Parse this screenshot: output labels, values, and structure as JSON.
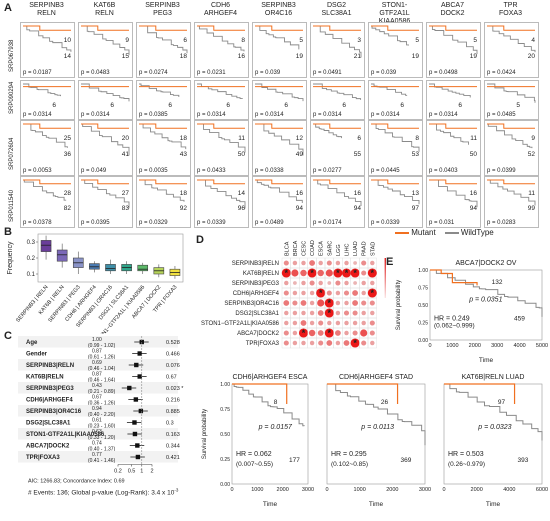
{
  "panel_labels": {
    "a": "A",
    "b": "B",
    "c": "C",
    "d": "D",
    "e": "E"
  },
  "legend": {
    "mutant": "Mutant",
    "wildtype": "WildType",
    "mutant_color": "#f07020",
    "wildtype_color": "#8a8a8a"
  },
  "panel_a": {
    "columns": [
      "SERPINB3\nRELN",
      "KAT6B\nRELN",
      "SERPINB3\nPEG3",
      "CDH6\nARHGEF4",
      "SERPINB3\nOR4C16",
      "DSG2\nSLC38A1",
      "STON1-GTF2A1L\nKIAA0586",
      "ABCA7\nDOCK2",
      "TPR\nFOXA3"
    ],
    "col_top": [
      "SERPINB3",
      "KAT6B",
      "SERPINB3",
      "CDH6",
      "SERPINB3",
      "DSG2",
      "STON1-GTF2A1L",
      "ABCA7",
      "TPR"
    ],
    "col_bot": [
      "RELN",
      "RELN",
      "PEG3",
      "ARHGEF4",
      "OR4C16",
      "SLC38A1",
      "KIAA0586",
      "DOCK2",
      "FOXA3"
    ],
    "rows": [
      "SRP067938",
      "SRP090294",
      "SRP072604",
      "SRP011540"
    ],
    "cells": [
      [
        {
          "m": "10",
          "w": "14",
          "p": "p = 0.0187"
        },
        {
          "m": "9",
          "w": "15",
          "p": "p = 0.0483"
        },
        {
          "m": "6",
          "w": "18",
          "p": "p = 0.0274"
        },
        {
          "m": "8",
          "w": "16",
          "p": "p = 0.0231"
        },
        {
          "m": "5",
          "w": "19",
          "p": "p = 0.039"
        },
        {
          "m": "3",
          "w": "21",
          "p": "p = 0.0491"
        },
        {
          "m": "5",
          "w": "19",
          "p": "p = 0.039"
        },
        {
          "m": "5",
          "w": "19",
          "p": "p = 0.0498"
        },
        {
          "m": "4",
          "w": "20",
          "p": "p = 0.0424"
        }
      ],
      [
        {
          "m": "",
          "w": "6",
          "p": "p = 0.0314"
        },
        {
          "m": "",
          "w": "6",
          "p": "p = 0.0314"
        },
        {
          "m": "",
          "w": "6",
          "p": "p = 0.0385"
        },
        {
          "m": "",
          "w": "6",
          "p": "p = 0.0314"
        },
        {
          "m": "",
          "w": "6",
          "p": "p = 0.0314"
        },
        {
          "m": "",
          "w": "6",
          "p": "p = 0.0314"
        },
        {
          "m": "",
          "w": "6",
          "p": "p = 0.0314"
        },
        {
          "m": "",
          "w": "6",
          "p": "p = 0.0314"
        },
        {
          "m": "",
          "w": "5",
          "p": "p = 0.0485"
        }
      ],
      [
        {
          "m": "25",
          "w": "36",
          "p": "p = 0.0053"
        },
        {
          "m": "20",
          "w": "41",
          "p": "p = 0.049"
        },
        {
          "m": "18",
          "w": "43",
          "p": "p = 0.0035"
        },
        {
          "m": "11",
          "w": "50",
          "p": "p = 0.0433"
        },
        {
          "m": "12",
          "w": "49",
          "p": "p = 0.0338"
        },
        {
          "m": "6",
          "w": "55",
          "p": "p = 0.0277"
        },
        {
          "m": "8",
          "w": "53",
          "p": "p = 0.0445"
        },
        {
          "m": "11",
          "w": "50",
          "p": "p = 0.0403"
        },
        {
          "m": "9",
          "w": "52",
          "p": "p = 0.0399"
        }
      ],
      [
        {
          "m": "28",
          "w": "82",
          "p": "p = 0.0378"
        },
        {
          "m": "27",
          "w": "83",
          "p": "p = 0.0395"
        },
        {
          "m": "18",
          "w": "92",
          "p": "p = 0.0329"
        },
        {
          "m": "14",
          "w": "96",
          "p": "p = 0.0339"
        },
        {
          "m": "16",
          "w": "94",
          "p": "p = 0.0489"
        },
        {
          "m": "16",
          "w": "94",
          "p": "p = 0.0174"
        },
        {
          "m": "13",
          "w": "97",
          "p": "p = 0.0339"
        },
        {
          "m": "16",
          "w": "94",
          "p": "p = 0.031"
        },
        {
          "m": "11",
          "w": "99",
          "p": "p = 0.0283"
        }
      ]
    ]
  },
  "chart_data": [
    {
      "type": "boxplot",
      "ylabel": "Frequency",
      "categories": [
        "SERPINB3 | RELN",
        "KAT6B | RELN",
        "SERPINB3 | PEG3",
        "CDH6 | ARHGEF4",
        "SERPINB3 | OR4C16",
        "DSG2 | SLC38A1",
        "STON1−GTF2A1L | KIAA0586",
        "ABCA7 | DOCK2",
        "TPR | FOXA3"
      ],
      "yticks": [
        "0.1",
        "0.2",
        "0.3"
      ],
      "ylim": [
        0.05,
        0.35
      ],
      "colors": [
        "#6a3d9a",
        "#7b68b8",
        "#8a93c8",
        "#4a7ab0",
        "#3f8fa8",
        "#2fa58a",
        "#5cba6a",
        "#b6d45a",
        "#f0e040"
      ],
      "boxes": [
        {
          "q1": 0.24,
          "med": 0.28,
          "q3": 0.31,
          "lo": 0.19,
          "hi": 0.34
        },
        {
          "q1": 0.18,
          "med": 0.22,
          "q3": 0.25,
          "lo": 0.14,
          "hi": 0.29
        },
        {
          "q1": 0.14,
          "med": 0.17,
          "q3": 0.2,
          "lo": 0.1,
          "hi": 0.24
        },
        {
          "q1": 0.13,
          "med": 0.145,
          "q3": 0.165,
          "lo": 0.11,
          "hi": 0.18
        },
        {
          "q1": 0.12,
          "med": 0.135,
          "q3": 0.16,
          "lo": 0.1,
          "hi": 0.19
        },
        {
          "q1": 0.12,
          "med": 0.14,
          "q3": 0.16,
          "lo": 0.1,
          "hi": 0.18
        },
        {
          "q1": 0.12,
          "med": 0.13,
          "q3": 0.155,
          "lo": 0.1,
          "hi": 0.17
        },
        {
          "q1": 0.1,
          "med": 0.12,
          "q3": 0.14,
          "lo": 0.08,
          "hi": 0.16
        },
        {
          "q1": 0.09,
          "med": 0.11,
          "q3": 0.13,
          "lo": 0.07,
          "hi": 0.15
        }
      ]
    },
    {
      "type": "forest",
      "rows": [
        {
          "name": "Age",
          "hr": "1.00",
          "ci": "(0.99 - 1.02)",
          "p": "0.528",
          "est": 1.0
        },
        {
          "name": "Gender",
          "hr": "0.87",
          "ci": "(0.61 - 1.26)",
          "p": "0.466",
          "est": 0.87
        },
        {
          "name": "SERPINB3|RELN",
          "hr": "0.69",
          "ci": "(0.46 - 1.04)",
          "p": "0.076",
          "est": 0.69
        },
        {
          "name": "KAT6B|RELN",
          "hr": "0.87",
          "ci": "(0.46 - 1.64)",
          "p": "0.67",
          "est": 0.87
        },
        {
          "name": "SERPINB3|PEG3",
          "hr": "0.43",
          "ci": "(0.21 - 0.89)",
          "p": "0.023 *",
          "est": 0.43
        },
        {
          "name": "CDH6|ARHGEF4",
          "hr": "0.67",
          "ci": "(0.36 - 1.26)",
          "p": "0.216",
          "est": 0.67
        },
        {
          "name": "SERPINB3|OR4C16",
          "hr": "0.94",
          "ci": "(0.40 - 2.20)",
          "p": "0.885",
          "est": 0.94
        },
        {
          "name": "DSG2|SLC38A1",
          "hr": "0.61",
          "ci": "(0.23 - 1.60)",
          "p": "0.3",
          "est": 0.61
        },
        {
          "name": "STON1-GTF2A1L|KIAA0586",
          "hr": "0.63",
          "ci": "(0.33 - 1.20)",
          "p": "0.163",
          "est": 0.63
        },
        {
          "name": "ABCA7|DOCK2",
          "hr": "0.74",
          "ci": "(0.40 - 1.37)",
          "p": "0.344",
          "est": 0.74
        },
        {
          "name": "TPR|FOXA3",
          "hr": "0.77",
          "ci": "(0.41 - 1.46)",
          "p": "0.421",
          "est": 0.77
        }
      ],
      "footer1": "AIC: 1266.83; Concordance Index: 0.69",
      "footer2": "# Events: 136; Global p-value (Log-Rank): 3.4 x 10",
      "footer2_exp": "-3",
      "xticks": [
        "0.2",
        "0.5",
        "1",
        "2"
      ]
    },
    {
      "type": "heatmap",
      "columns": [
        "BLCA",
        "BRCA",
        "CESC",
        "COAD",
        "ESCA",
        "SARC",
        "LGG",
        "LIHC",
        "LUAD",
        "PAAD",
        "STAD"
      ],
      "rows": [
        "SERPINB3|RELN",
        "KAT6B|RELN",
        "SERPINB3|PEG3",
        "CDH6|ARHGEF4",
        "SERPINB3|OR4C16",
        "DSG2|SLC38A1",
        "STON1−GTF2A1L|KIAA0586",
        "ABCA7|DOCK2",
        "TPR|FOXA3"
      ],
      "scale_label": "1 − p value",
      "scale_ticks": [
        "0.2",
        "0.4",
        "0.6",
        "0.8",
        "1"
      ],
      "values": [
        [
          0.4,
          0.3,
          0.3,
          0.5,
          0.3,
          0.4,
          0.3,
          0.3,
          0.2,
          0.4,
          0.3
        ],
        [
          0.98,
          0.7,
          0.6,
          0.98,
          0.6,
          0.7,
          0.98,
          0.98,
          0.98,
          0.4,
          0.98
        ],
        [
          0.3,
          0.2,
          0.3,
          0.4,
          0.3,
          0.2,
          0.4,
          0.3,
          0.2,
          0.3,
          0.3
        ],
        [
          0.4,
          0.3,
          0.3,
          0.3,
          0.98,
          0.4,
          0.3,
          0.4,
          0.5,
          0.3,
          0.98
        ],
        [
          0.5,
          0.4,
          0.5,
          0.3,
          0.7,
          0.98,
          0.3,
          0.3,
          0.5,
          0.4,
          0.4
        ],
        [
          0.3,
          0.3,
          0.3,
          0.3,
          0.5,
          0.98,
          0.3,
          0.4,
          0.4,
          0.3,
          0.3
        ],
        [
          0.3,
          0.3,
          0.5,
          0.3,
          0.4,
          0.3,
          0.3,
          0.3,
          0.3,
          0.3,
          0.4
        ],
        [
          0.4,
          0.3,
          0.98,
          0.6,
          0.5,
          0.98,
          0.5,
          0.3,
          0.4,
          0.7,
          0.4
        ],
        [
          0.4,
          0.3,
          0.3,
          0.3,
          0.4,
          0.5,
          0.3,
          0.5,
          0.98,
          0.4,
          0.3
        ]
      ]
    },
    {
      "type": "km",
      "title": "ABCA7|DOCK2 OV",
      "n_mut": "132",
      "n_wt": "459",
      "p": "p = 0.0351",
      "hr": "HR = 0.249",
      "ci": "(0.062~0.999)",
      "ylabel": "Survival probability",
      "xlabel": "Time",
      "xticks": [
        "0",
        "1000",
        "2000",
        "3000",
        "4000",
        "5000"
      ],
      "yticks": [
        "0.00",
        "0.25",
        "0.50",
        "0.75",
        "1.00"
      ]
    },
    {
      "type": "km",
      "title": "CDH6|ARHGEF4 ESCA",
      "n_mut": "8",
      "n_wt": "177",
      "p": "p = 0.0157",
      "hr": "HR = 0.062",
      "ci": "(0.007~0.55)",
      "ylabel": "Survival probability",
      "xlabel": "Time",
      "xticks": [
        "0",
        "1000",
        "2000",
        "3000"
      ],
      "yticks": [
        "0.00",
        "0.25",
        "0.50",
        "0.75",
        "1.00"
      ]
    },
    {
      "type": "km",
      "title": "CDH6|ARHGEF4 STAD",
      "n_mut": "26",
      "n_wt": "369",
      "p": "p = 0.0113",
      "hr": "HR = 0.295",
      "ci": "(0.102~0.85)",
      "ylabel": "",
      "xlabel": "Time",
      "xticks": [
        "0",
        "1000",
        "2000",
        "3000"
      ],
      "yticks": []
    },
    {
      "type": "km",
      "title": "KAT6B|RELN LUAD",
      "n_mut": "97",
      "n_wt": "393",
      "p": "p = 0.0323",
      "hr": "HR = 0.503",
      "ci": "(0.26~0.979)",
      "ylabel": "",
      "xlabel": "Time",
      "xticks": [
        "0",
        "2000",
        "4000",
        "6000"
      ],
      "yticks": []
    }
  ]
}
